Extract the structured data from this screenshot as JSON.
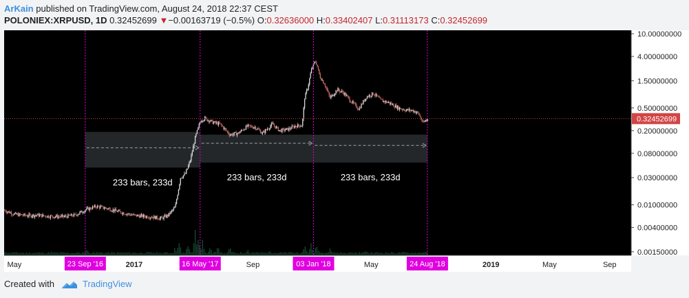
{
  "header": {
    "author": "ArKain",
    "published_text": "published on TradingView.com, August 24, 2018 22:37 CEST",
    "symbol": "POLONIEX:XRPUSD, 1D",
    "last_price": "0.32452699",
    "change": "−0.00163719 (−0.5%)",
    "open_label": "O:",
    "open": "0.32636000",
    "high_label": "H:",
    "high": "0.33402407",
    "low_label": "L:",
    "low": "0.31113173",
    "close_label": "C:",
    "close": "0.32452699"
  },
  "footer": {
    "created_with": "Created with",
    "brand": "TradingView"
  },
  "colors": {
    "background": "#000000",
    "candle_up": "#d8d8d8",
    "candle_down": "#c06a66",
    "volume": "#14472f",
    "marker": "#e000e0",
    "price_line": "#d24545",
    "range_box": "#2a2e30",
    "arrow": "#9aa3a8",
    "axis_bg": "#ffffff"
  },
  "chart_data": {
    "type": "candlestick",
    "y_scale": "log",
    "ylim": [
      0.0013,
      11.5
    ],
    "x_range": [
      "2016-04-10",
      "2019-10-15"
    ],
    "y_ticks": [
      {
        "label": "10.00000000",
        "value": 10
      },
      {
        "label": "4.00000000",
        "value": 4
      },
      {
        "label": "1.50000000",
        "value": 1.5
      },
      {
        "label": "0.50000000",
        "value": 0.5
      },
      {
        "label": "0.20000000",
        "value": 0.2
      },
      {
        "label": "0.08000000",
        "value": 0.08
      },
      {
        "label": "0.03000000",
        "value": 0.03
      },
      {
        "label": "0.01000000",
        "value": 0.01
      },
      {
        "label": "0.00400000",
        "value": 0.004
      },
      {
        "label": "0.00150000",
        "value": 0.0015
      }
    ],
    "x_ticks": [
      {
        "label": "May",
        "date": "2016-05-01",
        "bold": false
      },
      {
        "label": "2017",
        "date": "2017-01-01",
        "bold": true
      },
      {
        "label": "Sep",
        "date": "2017-09-01",
        "bold": false
      },
      {
        "label": "May",
        "date": "2018-05-01",
        "bold": false
      },
      {
        "label": "2019",
        "date": "2019-01-01",
        "bold": true
      },
      {
        "label": "May",
        "date": "2019-05-01",
        "bold": false
      },
      {
        "label": "Sep",
        "date": "2019-09-01",
        "bold": false
      }
    ],
    "vertical_markers": [
      {
        "label": "23 Sep '16",
        "date": "2016-09-23"
      },
      {
        "label": "16 May '17",
        "date": "2017-05-16"
      },
      {
        "label": "03 Jan '18",
        "date": "2018-01-03"
      },
      {
        "label": "24 Aug '18",
        "date": "2018-08-24"
      }
    ],
    "current_price": {
      "label": "0.32452699",
      "value": 0.32452699
    },
    "date_ranges": [
      {
        "from": "2016-09-23",
        "to": "2017-05-16",
        "low": 0.045,
        "high": 0.19,
        "label": "233 bars, 233d",
        "arrow_price": 0.1
      },
      {
        "from": "2017-05-16",
        "to": "2018-01-03",
        "low": 0.055,
        "high": 0.17,
        "label": "233 bars, 233d",
        "arrow_price": 0.12
      },
      {
        "from": "2018-01-03",
        "to": "2018-08-24",
        "low": 0.055,
        "high": 0.17,
        "label": "233 bars, 233d",
        "arrow_price": 0.11
      }
    ],
    "price_path": [
      {
        "date": "2016-04-10",
        "price": 0.008
      },
      {
        "date": "2016-05-01",
        "price": 0.0068
      },
      {
        "date": "2016-05-25",
        "price": 0.0065
      },
      {
        "date": "2016-06-15",
        "price": 0.0066
      },
      {
        "date": "2016-07-10",
        "price": 0.0063
      },
      {
        "date": "2016-08-10",
        "price": 0.0062
      },
      {
        "date": "2016-09-01",
        "price": 0.0066
      },
      {
        "date": "2016-09-23",
        "price": 0.0082
      },
      {
        "date": "2016-10-15",
        "price": 0.0094
      },
      {
        "date": "2016-11-10",
        "price": 0.0085
      },
      {
        "date": "2016-12-01",
        "price": 0.0075
      },
      {
        "date": "2017-01-01",
        "price": 0.0065
      },
      {
        "date": "2017-02-01",
        "price": 0.0062
      },
      {
        "date": "2017-02-25",
        "price": 0.0058
      },
      {
        "date": "2017-03-10",
        "price": 0.0065
      },
      {
        "date": "2017-03-25",
        "price": 0.009
      },
      {
        "date": "2017-04-05",
        "price": 0.03
      },
      {
        "date": "2017-04-15",
        "price": 0.035
      },
      {
        "date": "2017-04-25",
        "price": 0.06
      },
      {
        "date": "2017-05-05",
        "price": 0.15
      },
      {
        "date": "2017-05-16",
        "price": 0.3
      },
      {
        "date": "2017-05-25",
        "price": 0.33
      },
      {
        "date": "2017-06-10",
        "price": 0.28
      },
      {
        "date": "2017-06-25",
        "price": 0.26
      },
      {
        "date": "2017-07-15",
        "price": 0.17
      },
      {
        "date": "2017-08-01",
        "price": 0.18
      },
      {
        "date": "2017-08-20",
        "price": 0.24
      },
      {
        "date": "2017-09-05",
        "price": 0.23
      },
      {
        "date": "2017-09-20",
        "price": 0.18
      },
      {
        "date": "2017-10-10",
        "price": 0.26
      },
      {
        "date": "2017-10-25",
        "price": 0.2
      },
      {
        "date": "2017-11-10",
        "price": 0.21
      },
      {
        "date": "2017-11-25",
        "price": 0.24
      },
      {
        "date": "2017-12-10",
        "price": 0.25
      },
      {
        "date": "2017-12-15",
        "price": 0.75
      },
      {
        "date": "2017-12-22",
        "price": 1.2
      },
      {
        "date": "2017-12-28",
        "price": 2.2
      },
      {
        "date": "2018-01-03",
        "price": 3.0
      },
      {
        "date": "2018-01-07",
        "price": 3.3
      },
      {
        "date": "2018-01-15",
        "price": 1.8
      },
      {
        "date": "2018-01-25",
        "price": 1.3
      },
      {
        "date": "2018-02-05",
        "price": 0.75
      },
      {
        "date": "2018-02-20",
        "price": 1.05
      },
      {
        "date": "2018-03-05",
        "price": 0.92
      },
      {
        "date": "2018-03-20",
        "price": 0.65
      },
      {
        "date": "2018-04-05",
        "price": 0.48
      },
      {
        "date": "2018-04-20",
        "price": 0.78
      },
      {
        "date": "2018-05-05",
        "price": 0.9
      },
      {
        "date": "2018-05-20",
        "price": 0.68
      },
      {
        "date": "2018-06-05",
        "price": 0.62
      },
      {
        "date": "2018-06-25",
        "price": 0.5
      },
      {
        "date": "2018-07-10",
        "price": 0.46
      },
      {
        "date": "2018-07-25",
        "price": 0.45
      },
      {
        "date": "2018-08-05",
        "price": 0.4
      },
      {
        "date": "2018-08-14",
        "price": 0.27
      },
      {
        "date": "2018-08-24",
        "price": 0.3245
      }
    ],
    "volume_spikes": [
      {
        "date": "2016-04-20",
        "rel": 0.1
      },
      {
        "date": "2016-07-15",
        "rel": 0.12
      },
      {
        "date": "2016-09-25",
        "rel": 0.25
      },
      {
        "date": "2016-10-10",
        "rel": 0.15
      },
      {
        "date": "2017-03-25",
        "rel": 0.3
      },
      {
        "date": "2017-04-02",
        "rel": 0.55
      },
      {
        "date": "2017-04-20",
        "rel": 0.45
      },
      {
        "date": "2017-05-05",
        "rel": 1.0
      },
      {
        "date": "2017-05-12",
        "rel": 0.8
      },
      {
        "date": "2017-05-20",
        "rel": 0.6
      },
      {
        "date": "2017-06-05",
        "rel": 0.4
      },
      {
        "date": "2017-06-20",
        "rel": 0.35
      },
      {
        "date": "2017-07-15",
        "rel": 0.3
      },
      {
        "date": "2017-08-20",
        "rel": 0.25
      },
      {
        "date": "2017-10-05",
        "rel": 0.2
      },
      {
        "date": "2017-12-15",
        "rel": 0.5
      },
      {
        "date": "2017-12-28",
        "rel": 0.6
      },
      {
        "date": "2018-01-08",
        "rel": 0.45
      },
      {
        "date": "2018-02-05",
        "rel": 0.3
      },
      {
        "date": "2018-04-20",
        "rel": 0.18
      },
      {
        "date": "2018-08-14",
        "rel": 0.12
      }
    ]
  }
}
